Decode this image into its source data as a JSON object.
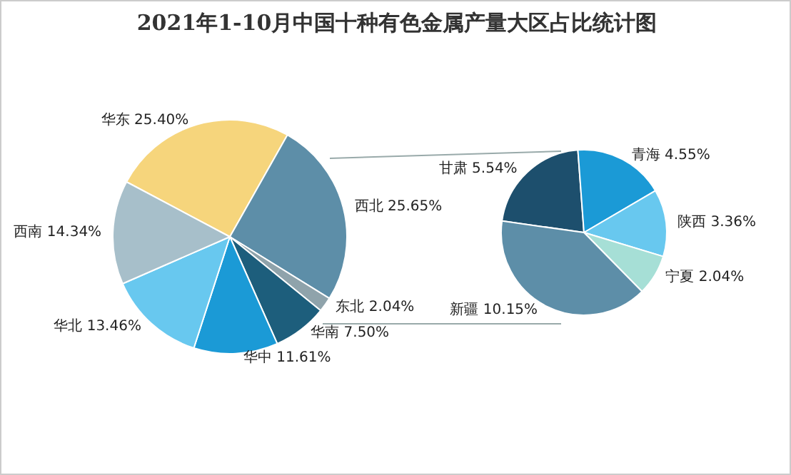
{
  "chart_data": [
    {
      "type": "pie",
      "title": "2021年1-10月中国十种有色金属产量大区占比统计图",
      "categories": [
        "华东",
        "西北",
        "东北",
        "华南",
        "华中",
        "华北",
        "西南"
      ],
      "values": [
        25.4,
        25.65,
        2.04,
        7.5,
        11.61,
        13.46,
        14.34
      ],
      "value_labels": [
        "25.40%",
        "25.65%",
        "2.04%",
        "7.50%",
        "11.61%",
        "13.46%",
        "14.34%"
      ],
      "colors": [
        "#f6d57c",
        "#5d8ea8",
        "#8fa3ab",
        "#1d5e7c",
        "#1b9ad6",
        "#68c8ef",
        "#a7bfca"
      ]
    },
    {
      "type": "pie",
      "categories": [
        "甘肃",
        "青海",
        "陕西",
        "宁夏",
        "新疆"
      ],
      "values": [
        5.54,
        4.55,
        3.36,
        2.04,
        10.15
      ],
      "value_labels": [
        "5.54%",
        "4.55%",
        "3.36%",
        "2.04%",
        "10.15%"
      ],
      "colors": [
        "#1d4f6d",
        "#1b9ad6",
        "#68c8ef",
        "#a6dfd6",
        "#5d8ea8"
      ]
    }
  ]
}
